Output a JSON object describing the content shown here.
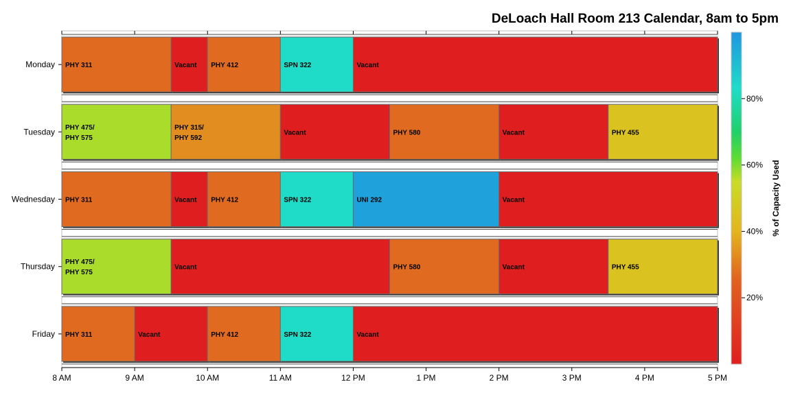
{
  "chart_data": {
    "type": "bar",
    "orientation": "horizontal",
    "title": "DeLoach Hall Room 213 Calendar, 8am to 5pm",
    "xlabel": "",
    "ylabel": "",
    "xlim": [
      8,
      17
    ],
    "x_ticks": [
      {
        "value": 8,
        "label": "8 AM"
      },
      {
        "value": 9,
        "label": "9 AM"
      },
      {
        "value": 10,
        "label": "10 AM"
      },
      {
        "value": 11,
        "label": "11 AM"
      },
      {
        "value": 12,
        "label": "12 PM"
      },
      {
        "value": 13,
        "label": "1 PM"
      },
      {
        "value": 14,
        "label": "2 PM"
      },
      {
        "value": 15,
        "label": "3 PM"
      },
      {
        "value": 16,
        "label": "4 PM"
      },
      {
        "value": 17,
        "label": "5 PM"
      }
    ],
    "grid": false,
    "days": [
      {
        "name": "Monday",
        "segments": [
          {
            "start": 8,
            "end": 9.5,
            "label": [
              "PHY 311"
            ],
            "capacity": 27
          },
          {
            "start": 9.5,
            "end": 10,
            "label": [
              "Vacant"
            ],
            "capacity": 0
          },
          {
            "start": 10,
            "end": 11,
            "label": [
              "PHY 412"
            ],
            "capacity": 27
          },
          {
            "start": 11,
            "end": 12,
            "label": [
              "SPN 322"
            ],
            "capacity": 83
          },
          {
            "start": 12,
            "end": 17,
            "label": [
              "Vacant"
            ],
            "capacity": 0
          }
        ]
      },
      {
        "name": "Tuesday",
        "segments": [
          {
            "start": 8,
            "end": 9.5,
            "label": [
              "PHY 475/",
              "PHY 575"
            ],
            "capacity": 57
          },
          {
            "start": 9.5,
            "end": 11,
            "label": [
              "PHY 315/",
              "PHY 592"
            ],
            "capacity": 33
          },
          {
            "start": 11,
            "end": 12.5,
            "label": [
              "Vacant"
            ],
            "capacity": 0
          },
          {
            "start": 12.5,
            "end": 14,
            "label": [
              "PHY 580"
            ],
            "capacity": 27
          },
          {
            "start": 14,
            "end": 15.5,
            "label": [
              "Vacant"
            ],
            "capacity": 0
          },
          {
            "start": 15.5,
            "end": 17,
            "label": [
              "PHY 455"
            ],
            "capacity": 45
          }
        ]
      },
      {
        "name": "Wednesday",
        "segments": [
          {
            "start": 8,
            "end": 9.5,
            "label": [
              "PHY 311"
            ],
            "capacity": 27
          },
          {
            "start": 9.5,
            "end": 10,
            "label": [
              "Vacant"
            ],
            "capacity": 0
          },
          {
            "start": 10,
            "end": 11,
            "label": [
              "PHY 412"
            ],
            "capacity": 27
          },
          {
            "start": 11,
            "end": 12,
            "label": [
              "SPN 322"
            ],
            "capacity": 83
          },
          {
            "start": 12,
            "end": 14,
            "label": [
              "UNI 292"
            ],
            "capacity": 97
          },
          {
            "start": 14,
            "end": 17,
            "label": [
              "Vacant"
            ],
            "capacity": 0
          }
        ]
      },
      {
        "name": "Thursday",
        "segments": [
          {
            "start": 8,
            "end": 9.5,
            "label": [
              "PHY 475/",
              "PHY 575"
            ],
            "capacity": 57
          },
          {
            "start": 9.5,
            "end": 12.5,
            "label": [
              "Vacant"
            ],
            "capacity": 0
          },
          {
            "start": 12.5,
            "end": 14,
            "label": [
              "PHY 580"
            ],
            "capacity": 27
          },
          {
            "start": 14,
            "end": 15.5,
            "label": [
              "Vacant"
            ],
            "capacity": 0
          },
          {
            "start": 15.5,
            "end": 17,
            "label": [
              "PHY 455"
            ],
            "capacity": 45
          }
        ]
      },
      {
        "name": "Friday",
        "segments": [
          {
            "start": 8,
            "end": 9,
            "label": [
              "PHY 311"
            ],
            "capacity": 27
          },
          {
            "start": 9,
            "end": 10,
            "label": [
              "Vacant"
            ],
            "capacity": 0
          },
          {
            "start": 10,
            "end": 11,
            "label": [
              "PHY 412"
            ],
            "capacity": 27
          },
          {
            "start": 11,
            "end": 12,
            "label": [
              "SPN 322"
            ],
            "capacity": 83
          },
          {
            "start": 12,
            "end": 17,
            "label": [
              "Vacant"
            ],
            "capacity": 0
          }
        ]
      }
    ],
    "colorbar": {
      "title": "% of Capacity Used",
      "position": "right",
      "range": [
        0,
        100
      ],
      "ticks": [
        {
          "value": 20,
          "label": "20%"
        },
        {
          "value": 40,
          "label": "40%"
        },
        {
          "value": 60,
          "label": "60%"
        },
        {
          "value": 80,
          "label": "80%"
        }
      ],
      "stops": [
        {
          "value": 0,
          "color": "#df1f1f"
        },
        {
          "value": 25,
          "color": "#e06020"
        },
        {
          "value": 40,
          "color": "#e3b51e"
        },
        {
          "value": 55,
          "color": "#c8dc28"
        },
        {
          "value": 62,
          "color": "#5edc32"
        },
        {
          "value": 70,
          "color": "#1fd06a"
        },
        {
          "value": 83,
          "color": "#1fdcc8"
        },
        {
          "value": 100,
          "color": "#1f96e0"
        }
      ]
    }
  }
}
